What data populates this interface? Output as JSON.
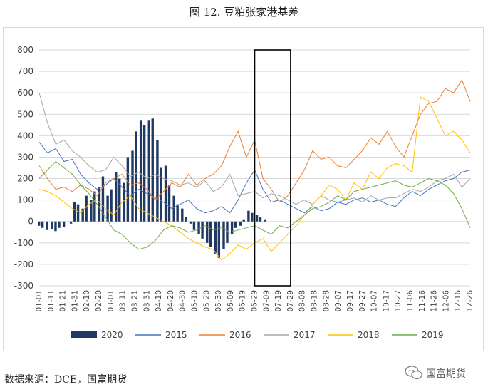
{
  "title": "图 12.  豆粕张家港基差",
  "source": "数据来源：DCE，国富期货",
  "brand": "国富期货",
  "chart_data": {
    "type": "bar+line",
    "ylim": [
      -300,
      800
    ],
    "yticks": [
      -300,
      -200,
      -100,
      0,
      100,
      200,
      300,
      400,
      500,
      600,
      700,
      800
    ],
    "categories": [
      "01-01",
      "01-11",
      "01-21",
      "01-31",
      "02-10",
      "02-20",
      "03-01",
      "03-11",
      "03-21",
      "03-31",
      "04-10",
      "04-20",
      "04-30",
      "05-10",
      "05-20",
      "05-30",
      "06-09",
      "06-19",
      "06-29",
      "07-09",
      "07-19",
      "07-29",
      "08-08",
      "08-18",
      "08-28",
      "09-07",
      "09-17",
      "09-27",
      "10-07",
      "10-17",
      "10-27",
      "11-06",
      "11-16",
      "11-26",
      "12-06",
      "12-16",
      "12-26"
    ],
    "grid": true,
    "legend_position": "bottom",
    "highlight_box": {
      "x_from": "06-29",
      "x_to": "07-29"
    },
    "colors": {
      "2020": "#203864",
      "2015": "#4472c4",
      "2016": "#ed7d31",
      "2017": "#a5a5a5",
      "2018": "#ffc000",
      "2019": "#70ad47"
    },
    "series": [
      {
        "name": "2020",
        "kind": "bar",
        "points": [
          [
            1,
            -20
          ],
          [
            4,
            -30
          ],
          [
            8,
            -40
          ],
          [
            12,
            -35
          ],
          [
            15,
            -45
          ],
          [
            18,
            -30
          ],
          [
            22,
            -25
          ],
          [
            28,
            -10
          ],
          [
            31,
            90
          ],
          [
            34,
            80
          ],
          [
            38,
            60
          ],
          [
            41,
            120
          ],
          [
            45,
            100
          ],
          [
            48,
            140
          ],
          [
            52,
            160
          ],
          [
            55,
            210
          ],
          [
            59,
            120
          ],
          [
            62,
            150
          ],
          [
            66,
            230
          ],
          [
            69,
            200
          ],
          [
            73,
            180
          ],
          [
            76,
            300
          ],
          [
            80,
            330
          ],
          [
            83,
            420
          ],
          [
            87,
            470
          ],
          [
            90,
            450
          ],
          [
            94,
            470
          ],
          [
            97,
            480
          ],
          [
            101,
            380
          ],
          [
            104,
            250
          ],
          [
            108,
            260
          ],
          [
            111,
            170
          ],
          [
            115,
            120
          ],
          [
            118,
            80
          ],
          [
            122,
            60
          ],
          [
            125,
            20
          ],
          [
            129,
            -10
          ],
          [
            132,
            -40
          ],
          [
            136,
            -60
          ],
          [
            139,
            -80
          ],
          [
            143,
            -100
          ],
          [
            146,
            -120
          ],
          [
            150,
            -150
          ],
          [
            153,
            -170
          ],
          [
            157,
            -130
          ],
          [
            160,
            -100
          ],
          [
            164,
            -60
          ],
          [
            167,
            -30
          ],
          [
            171,
            -20
          ],
          [
            174,
            10
          ],
          [
            178,
            50
          ],
          [
            181,
            40
          ],
          [
            185,
            30
          ],
          [
            188,
            20
          ],
          [
            192,
            10
          ]
        ]
      },
      {
        "name": "2015",
        "kind": "line",
        "x": [
          1,
          8,
          15,
          22,
          29,
          36,
          43,
          50,
          57,
          64,
          71,
          78,
          85,
          92,
          99,
          106,
          113,
          120,
          127,
          134,
          141,
          148,
          155,
          162,
          169,
          176,
          183,
          190,
          197,
          204,
          211,
          218,
          225,
          232,
          239,
          246,
          253,
          260,
          267,
          274,
          281,
          288,
          295,
          302,
          309,
          316,
          323,
          330,
          337,
          344,
          351,
          358,
          365
        ],
        "values": [
          370,
          320,
          340,
          280,
          290,
          220,
          180,
          150,
          170,
          200,
          160,
          120,
          150,
          130,
          110,
          90,
          60,
          80,
          100,
          60,
          40,
          50,
          70,
          40,
          100,
          180,
          240,
          150,
          90,
          100,
          80,
          60,
          40,
          70,
          50,
          60,
          90,
          80,
          100,
          110,
          90,
          100,
          80,
          70,
          110,
          140,
          120,
          150,
          170,
          190,
          200,
          230,
          240
        ]
      },
      {
        "name": "2016",
        "kind": "line",
        "x": [
          1,
          8,
          15,
          22,
          29,
          36,
          43,
          50,
          57,
          64,
          71,
          78,
          85,
          92,
          99,
          106,
          113,
          120,
          127,
          134,
          141,
          148,
          155,
          162,
          169,
          176,
          183,
          190,
          197,
          204,
          211,
          218,
          225,
          232,
          239,
          246,
          253,
          260,
          267,
          274,
          281,
          288,
          295,
          302,
          309,
          316,
          323,
          330,
          337,
          344,
          351,
          358,
          365
        ],
        "values": [
          260,
          200,
          150,
          160,
          140,
          170,
          150,
          120,
          180,
          200,
          220,
          170,
          180,
          150,
          100,
          140,
          180,
          160,
          220,
          170,
          200,
          220,
          260,
          350,
          420,
          300,
          380,
          200,
          150,
          90,
          120,
          180,
          240,
          330,
          290,
          300,
          260,
          250,
          290,
          330,
          390,
          360,
          420,
          350,
          300,
          400,
          500,
          550,
          560,
          620,
          600,
          660,
          560
        ]
      },
      {
        "name": "2017",
        "kind": "line",
        "x": [
          1,
          8,
          15,
          22,
          29,
          36,
          43,
          50,
          57,
          64,
          71,
          78,
          85,
          92,
          99,
          106,
          113,
          120,
          127,
          134,
          141,
          148,
          155,
          162,
          169,
          176,
          183,
          190,
          197,
          204,
          211,
          218,
          225,
          232,
          239,
          246,
          253,
          260,
          267,
          274,
          281,
          288,
          295,
          302,
          309,
          316,
          323,
          330,
          337,
          344,
          351,
          358,
          365
        ],
        "values": [
          600,
          460,
          360,
          380,
          330,
          300,
          260,
          230,
          240,
          300,
          260,
          210,
          230,
          200,
          220,
          200,
          190,
          170,
          180,
          160,
          190,
          140,
          160,
          220,
          120,
          130,
          140,
          110,
          130,
          120,
          100,
          80,
          100,
          80,
          120,
          100,
          90,
          100,
          110,
          90,
          120,
          100,
          110,
          110,
          130,
          150,
          140,
          160,
          190,
          200,
          220,
          160,
          200
        ]
      },
      {
        "name": "2018",
        "kind": "line",
        "x": [
          1,
          8,
          15,
          22,
          29,
          36,
          43,
          50,
          57,
          64,
          71,
          78,
          85,
          92,
          99,
          106,
          113,
          120,
          127,
          134,
          141,
          148,
          155,
          162,
          169,
          176,
          183,
          190,
          197,
          204,
          211,
          218,
          225,
          232,
          239,
          246,
          253,
          260,
          267,
          274,
          281,
          288,
          295,
          302,
          309,
          316,
          323,
          330,
          337,
          344,
          351,
          358,
          365
        ],
        "values": [
          150,
          140,
          120,
          90,
          60,
          40,
          80,
          100,
          60,
          30,
          90,
          120,
          60,
          40,
          20,
          0,
          -20,
          -50,
          -80,
          -100,
          -120,
          -130,
          -180,
          -150,
          -110,
          -130,
          -100,
          -80,
          -140,
          -100,
          -60,
          -20,
          30,
          80,
          120,
          170,
          150,
          100,
          180,
          150,
          230,
          200,
          250,
          270,
          260,
          230,
          580,
          560,
          480,
          400,
          420,
          380,
          320
        ]
      },
      {
        "name": "2019",
        "kind": "line",
        "x": [
          1,
          8,
          15,
          22,
          29,
          36,
          43,
          50,
          57,
          64,
          71,
          78,
          85,
          92,
          99,
          106,
          113,
          120,
          127,
          134,
          141,
          148,
          155,
          162,
          169,
          176,
          183,
          190,
          197,
          204,
          211,
          218,
          225,
          232,
          239,
          246,
          253,
          260,
          267,
          274,
          281,
          288,
          295,
          302,
          309,
          316,
          323,
          330,
          337,
          344,
          351,
          358,
          365
        ],
        "values": [
          200,
          240,
          280,
          250,
          220,
          170,
          130,
          80,
          20,
          -40,
          -60,
          -100,
          -130,
          -120,
          -90,
          -40,
          -20,
          -30,
          -50,
          -40,
          -20,
          -40,
          -30,
          -50,
          -40,
          -30,
          -20,
          -40,
          -60,
          -20,
          -30,
          0,
          30,
          60,
          70,
          90,
          120,
          100,
          140,
          150,
          160,
          170,
          180,
          190,
          170,
          160,
          180,
          200,
          190,
          170,
          130,
          60,
          -30
        ]
      }
    ]
  }
}
